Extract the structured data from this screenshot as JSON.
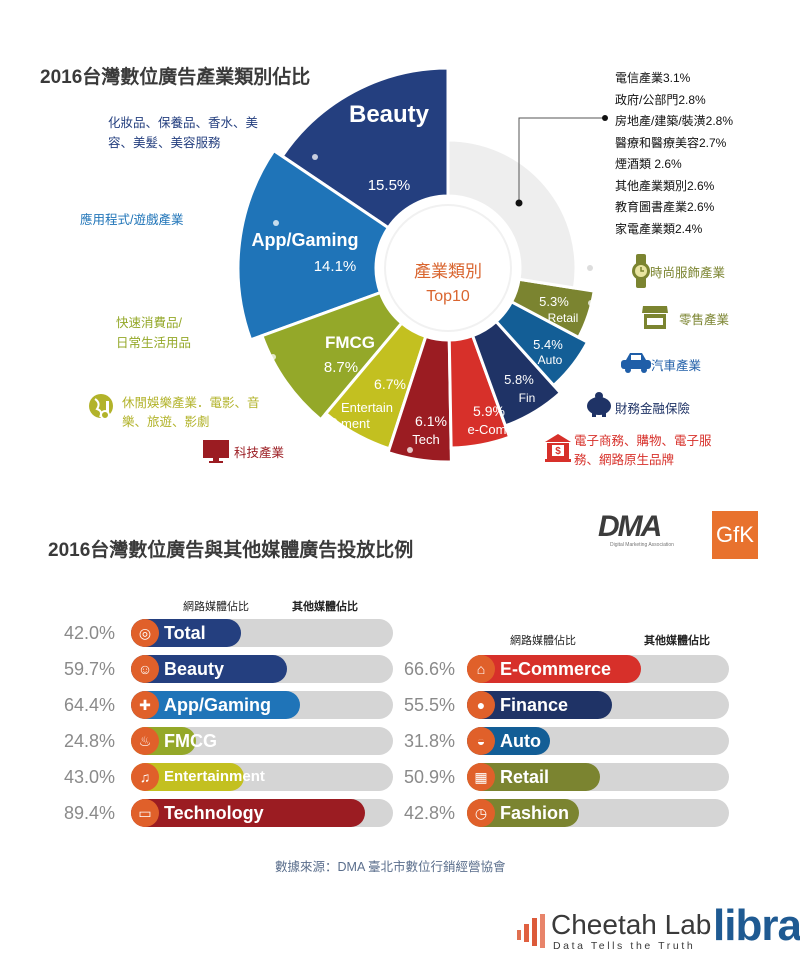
{
  "section1": {
    "title": "2016台灣數位廣告產業類別佔比",
    "center_label_1": "產業類別",
    "center_label_2": "Top10"
  },
  "descriptions": {
    "beauty": [
      "化妝品、保養品、香水、美",
      "容、美髮、美容服務"
    ],
    "app": "應用程式/遊戲產業",
    "fmcg": [
      "快速消費品/",
      "日常生活用品"
    ],
    "entertainment": [
      "休閒娛樂產業．電影、音",
      "樂、旅遊、影劇"
    ],
    "tech": "科技產業",
    "fashion": "時尚服飾產業",
    "retail": "零售產業",
    "auto": "汽車產業",
    "finance": "財務金融保險",
    "ecommerce": [
      "電子商務、購物、電子服",
      "務、網路原生品牌"
    ]
  },
  "others_list": [
    "電信產業3.1%",
    "政府/公部門2.8%",
    "房地產/建築/裝潢2.8%",
    "醫療和醫療美容2.7%",
    "煙酒類 2.6%",
    "其他產業類別2.6%",
    "教育圖書產業2.6%",
    "家電產業類2.4%"
  ],
  "section2": {
    "title": "2016台灣數位廣告與其他媒體廣告投放比例",
    "col_online": "網路媒體佔比",
    "col_other": "其他媒體佔比",
    "logo_dma": "DMA",
    "logo_dma_sub": "Digital Marketing Association",
    "logo_gfk": "GfK"
  },
  "bars_left": [
    {
      "label": "Total",
      "pct": "42.0%",
      "value": 42.0,
      "color": "#243f7f",
      "icon": "globe-icon",
      "glyph": "◎"
    },
    {
      "label": "Beauty",
      "pct": "59.7%",
      "value": 59.7,
      "color": "#243f7f",
      "icon": "woman-icon",
      "glyph": "☺"
    },
    {
      "label": "App/Gaming",
      "pct": "64.4%",
      "value": 64.4,
      "color": "#1f74b8",
      "icon": "gamepad-icon",
      "glyph": "✚"
    },
    {
      "label": "FMCG",
      "pct": "24.8%",
      "value": 24.8,
      "color": "#94a829",
      "icon": "egg-spoon-icon",
      "glyph": "♨"
    },
    {
      "label": "Entertainment",
      "pct": "43.0%",
      "value": 43.0,
      "color": "#c3c020",
      "icon": "globe-music-icon",
      "glyph": "♫"
    },
    {
      "label": "Technology",
      "pct": "89.4%",
      "value": 89.4,
      "color": "#9b1c22",
      "icon": "monitor-icon",
      "glyph": "▭"
    }
  ],
  "bars_right": [
    {
      "label": "E-Commerce",
      "pct": "66.6%",
      "value": 66.6,
      "color": "#d7302a",
      "icon": "bank-icon",
      "glyph": "⌂"
    },
    {
      "label": "Finance",
      "pct": "55.5%",
      "value": 55.5,
      "color": "#1f3366",
      "icon": "piggy-bank-icon",
      "glyph": "●"
    },
    {
      "label": "Auto",
      "pct": "31.8%",
      "value": 31.8,
      "color": "#135e96",
      "icon": "car-icon",
      "glyph": "◒"
    },
    {
      "label": "Retail",
      "pct": "50.9%",
      "value": 50.9,
      "color": "#7b8430",
      "icon": "store-icon",
      "glyph": "▦"
    },
    {
      "label": "Fashion",
      "pct": "42.8%",
      "value": 42.8,
      "color": "#7b8430",
      "icon": "watch-icon",
      "glyph": "◷"
    }
  ],
  "footer": {
    "source": "數據來源：DMA 臺北市數位行銷經營協會",
    "brand1": "Cheetah Lab",
    "brand1_tagline": "Data Tells the Truth",
    "brand2": "libra"
  },
  "chart_data": [
    {
      "type": "pie",
      "title": "2016台灣數位廣告產業類別佔比",
      "subtitle": "產業類別 Top10",
      "categories": [
        "Beauty",
        "App/Gaming",
        "FMCG",
        "Entertainment",
        "Tech",
        "e-Com",
        "Fin",
        "Auto",
        "Retail",
        "Others"
      ],
      "values": [
        15.5,
        14.1,
        8.7,
        6.7,
        6.1,
        5.9,
        5.8,
        5.4,
        5.3,
        null
      ],
      "labels": [
        "15.5%",
        "14.1%",
        "8.7%",
        "6.7%",
        "6.1%",
        "5.9%",
        "5.8%",
        "5.4%",
        "5.3%",
        ""
      ],
      "colors": [
        "#243f7f",
        "#1f74b8",
        "#94a829",
        "#c3c020",
        "#9b1c22",
        "#d7302a",
        "#1f3366",
        "#135e96",
        "#7b8430",
        "#eeeeee"
      ],
      "slices": [
        {
          "name": "Beauty",
          "label": "Beauty",
          "value": 15.5,
          "start": 0,
          "end": -56,
          "r": 200
        },
        {
          "name": "App/Gaming",
          "label": "App/Gaming",
          "value": 14.1,
          "start": -56,
          "end": -110,
          "r": 210
        },
        {
          "name": "FMCG",
          "label": "FMCG",
          "value": 8.7,
          "start": -110,
          "end": -140,
          "r": 198
        },
        {
          "name": "Entertainment",
          "label": "Entertain ment",
          "value": 6.7,
          "start": -140,
          "end": -162,
          "r": 190
        },
        {
          "name": "Tech",
          "label": "Tech",
          "value": 6.1,
          "start": -162,
          "end": -181,
          "r": 194
        },
        {
          "name": "e-Com",
          "label": "e-Com",
          "value": 5.9,
          "start": 179,
          "end": 160,
          "r": 180
        },
        {
          "name": "Fin",
          "label": "Fin",
          "value": 5.8,
          "start": 160,
          "end": 138,
          "r": 168
        },
        {
          "name": "Auto",
          "label": "Auto",
          "value": 5.4,
          "start": 138,
          "end": 118,
          "r": 158
        },
        {
          "name": "Retail",
          "label": "Retail",
          "value": 5.3,
          "start": 118,
          "end": 99,
          "r": 148
        },
        {
          "name": "Others",
          "label": "",
          "value": null,
          "start": 99,
          "end": 0,
          "r": 128
        }
      ],
      "others_breakdown": [
        {
          "name": "電信產業",
          "value": 3.1
        },
        {
          "name": "政府/公部門",
          "value": 2.8
        },
        {
          "name": "房地產/建築/裝潢",
          "value": 2.8
        },
        {
          "name": "醫療和醫療美容",
          "value": 2.7
        },
        {
          "name": "煙酒類",
          "value": 2.6
        },
        {
          "name": "其他產業類別",
          "value": 2.6
        },
        {
          "name": "教育圖書產業",
          "value": 2.6
        },
        {
          "name": "家電產業類",
          "value": 2.4
        }
      ]
    },
    {
      "type": "bar",
      "title": "2016台灣數位廣告與其他媒體廣告投放比例",
      "orientation": "horizontal",
      "stacked": true,
      "categories": [
        "Total",
        "Beauty",
        "App/Gaming",
        "FMCG",
        "Entertainment",
        "Technology",
        "E-Commerce",
        "Finance",
        "Auto",
        "Retail",
        "Fashion"
      ],
      "series": [
        {
          "name": "網路媒體佔比",
          "values": [
            42.0,
            59.7,
            64.4,
            24.8,
            43.0,
            89.4,
            66.6,
            55.5,
            31.8,
            50.9,
            42.8
          ]
        },
        {
          "name": "其他媒體佔比",
          "values": [
            58.0,
            40.3,
            35.6,
            75.2,
            57.0,
            10.6,
            33.4,
            44.5,
            68.2,
            49.1,
            57.2
          ]
        }
      ],
      "xlim": [
        0,
        100
      ]
    }
  ]
}
